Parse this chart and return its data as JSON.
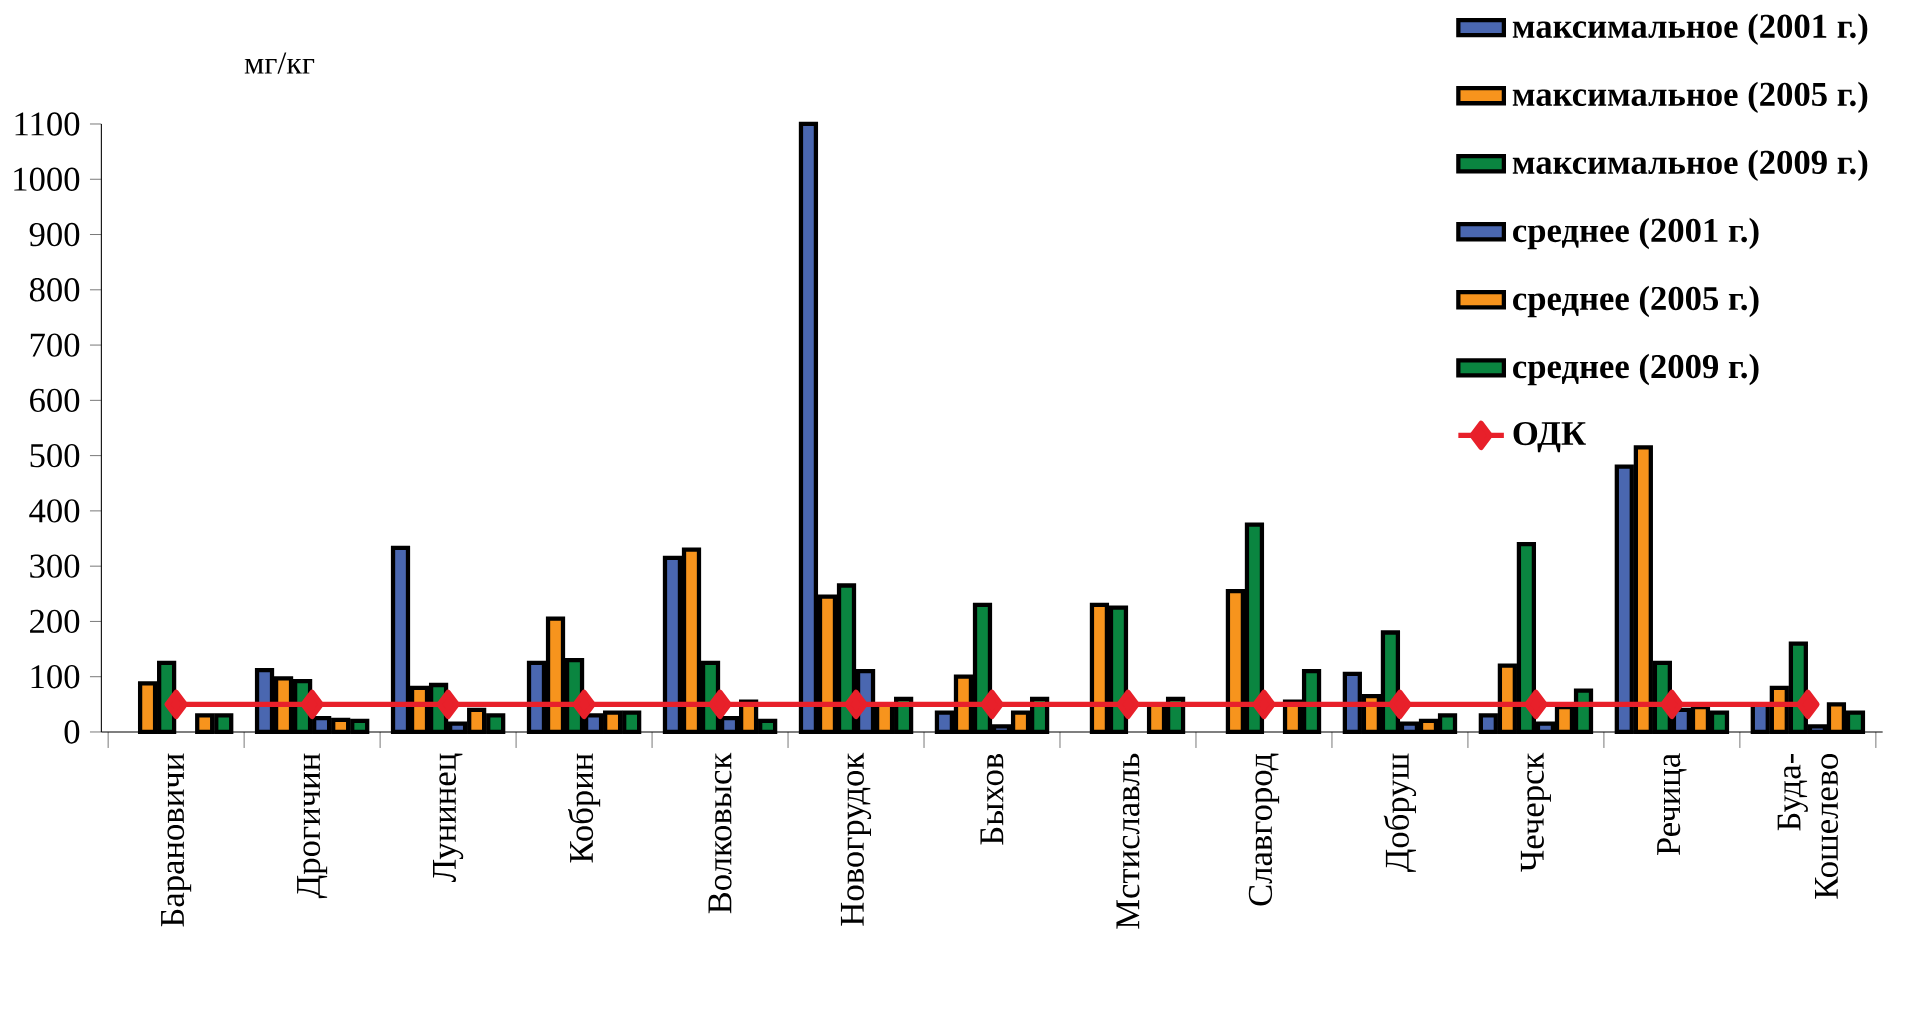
{
  "chart_data": {
    "type": "bar",
    "ylabel": "мг/кг",
    "categories": [
      "Барановичи",
      "Дрогичин",
      "Лунинец",
      "Кобрин",
      "Волковыск",
      "Новогрудок",
      "Быхов",
      "Мстиславль",
      "Славгород",
      "Добруш",
      "Чечерск",
      "Речица",
      "Буда-Кошелево"
    ],
    "series": [
      {
        "name": "максимальное (2001 г.)",
        "color": "#4a67b0",
        "values": [
          null,
          112,
          333,
          125,
          315,
          1100,
          35,
          null,
          null,
          105,
          30,
          480,
          50
        ]
      },
      {
        "name": "максимальное (2005 г.)",
        "color": "#f7941d",
        "values": [
          88,
          97,
          80,
          205,
          330,
          245,
          100,
          230,
          255,
          65,
          120,
          515,
          80
        ]
      },
      {
        "name": "максимальное (2009 г.)",
        "color": "#0a8540",
        "values": [
          125,
          92,
          85,
          130,
          125,
          265,
          230,
          225,
          375,
          180,
          340,
          125,
          160
        ]
      },
      {
        "name": "среднее (2001 г.)",
        "color": "#4a67b0",
        "values": [
          null,
          25,
          15,
          30,
          25,
          110,
          10,
          null,
          null,
          15,
          15,
          40,
          10
        ]
      },
      {
        "name": "среднее (2005 г.)",
        "color": "#f7941d",
        "values": [
          30,
          22,
          40,
          35,
          55,
          50,
          35,
          50,
          55,
          20,
          45,
          45,
          50
        ]
      },
      {
        "name": "среднее (2009 г.)",
        "color": "#0a8540",
        "values": [
          30,
          20,
          30,
          35,
          20,
          60,
          60,
          60,
          110,
          30,
          75,
          35,
          35
        ]
      },
      {
        "name": "ОДК",
        "type": "line",
        "color": "#e8202a",
        "marker": "diamond",
        "line_style": "solid",
        "values": [
          50,
          50,
          50,
          50,
          50,
          50,
          50,
          50,
          50,
          50,
          50,
          50,
          50
        ]
      }
    ],
    "ylim": [
      0,
      1100
    ],
    "yticks": [
      0,
      100,
      200,
      300,
      400,
      500,
      600,
      700,
      800,
      900,
      1000,
      1100
    ],
    "grid": false,
    "legend": "top right"
  }
}
